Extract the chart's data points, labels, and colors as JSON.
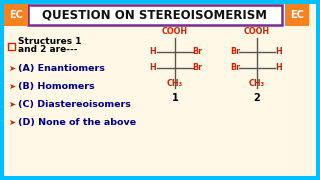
{
  "title": "QUESTION ON STEREOISOMERISM",
  "bg_color": "#00BFFF",
  "panel_color": "#FFF8E7",
  "title_bg": "#FFFFFF",
  "title_color": "#111111",
  "title_border": "#7B2D8B",
  "ec_bg": "#F5821E",
  "ec_text": "EC",
  "question_text": [
    "Structures 1",
    "and 2 are---"
  ],
  "options": [
    "(A) Enantiomers",
    "(B) Homomers",
    "(C) Diastereoisomers",
    "(D) None of the above"
  ],
  "red_color": "#CC2200",
  "dark_blue": "#000080",
  "arrow_color": "#CC2200",
  "font_size_title": 8.5,
  "font_size_options": 6.8,
  "font_size_struct": 5.8
}
